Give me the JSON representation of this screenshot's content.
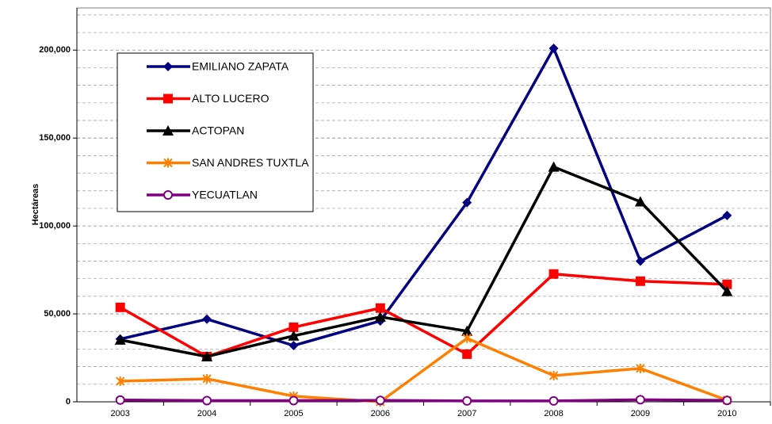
{
  "chart_data": {
    "type": "line",
    "y_label": "Hectáreas",
    "categories": [
      "2003",
      "2004",
      "2005",
      "2006",
      "2007",
      "2008",
      "2009",
      "2010"
    ],
    "series": [
      {
        "name": "EMILIANO ZAPATA",
        "color": "#000080",
        "marker": "diamond",
        "values": [
          35700,
          47000,
          32000,
          46000,
          113300,
          201000,
          80000,
          106000
        ]
      },
      {
        "name": "ALTO LUCERO",
        "color": "#ff0000",
        "marker": "square",
        "values": [
          53700,
          25700,
          42400,
          53300,
          27100,
          72700,
          68600,
          66800
        ]
      },
      {
        "name": "ACTOPAN",
        "color": "#000000",
        "marker": "triangle",
        "values": [
          35200,
          25700,
          37500,
          48300,
          40200,
          133600,
          113800,
          62800
        ]
      },
      {
        "name": "SAN ANDRES TUXTLA",
        "color": "#ff8000",
        "marker": "star",
        "values": [
          11700,
          13100,
          3200,
          0,
          36100,
          14900,
          19000,
          900
        ]
      },
      {
        "name": "YECUATLAN",
        "color": "#800080",
        "marker": "circle",
        "values": [
          1000,
          700,
          700,
          800,
          500,
          500,
          1200,
          800
        ]
      }
    ],
    "ylim": [
      0,
      224000
    ],
    "yticks": [
      {
        "value": 0,
        "label": "0"
      },
      {
        "value": 50000,
        "label": "50,000"
      },
      {
        "value": 100000,
        "label": "100,000"
      },
      {
        "value": 150000,
        "label": "150,000"
      },
      {
        "value": 200000,
        "label": "200,000"
      }
    ],
    "minor_grid": [
      10000,
      20000,
      30000,
      40000,
      60000,
      70000,
      80000,
      90000,
      110000,
      120000,
      130000,
      140000,
      160000,
      170000,
      180000,
      190000,
      210000,
      220000
    ],
    "grid": true
  }
}
